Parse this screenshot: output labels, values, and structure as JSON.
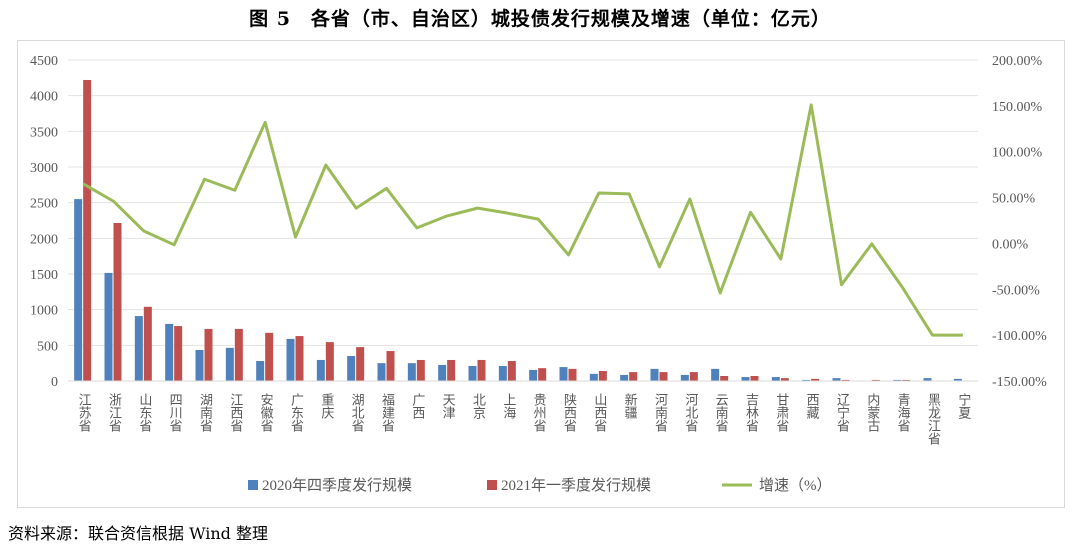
{
  "title": "图 5　各省（市、自治区）城投债发行规模及增速（单位：亿元）",
  "source": "资料来源：联合资信根据 Wind 整理",
  "chart_data": {
    "type": "bar+line",
    "categories": [
      "江苏省",
      "浙江省",
      "山东省",
      "四川省",
      "湖南省",
      "江西省",
      "安徽省",
      "广东省",
      "重庆",
      "湖北省",
      "福建省",
      "广西",
      "天津",
      "北京",
      "上海",
      "贵州省",
      "陕西省",
      "山西省",
      "新疆",
      "河南省",
      "河北省",
      "云南省",
      "吉林省",
      "甘肃省",
      "西藏",
      "辽宁省",
      "内蒙古",
      "青海省",
      "黑龙江省",
      "宁夏"
    ],
    "series": [
      {
        "name": "2020年四季度发行规模",
        "type": "bar",
        "axis": "left",
        "color": "#4f81bd",
        "values": [
          2550,
          1515,
          910,
          800,
          435,
          465,
          280,
          590,
          295,
          350,
          250,
          250,
          225,
          210,
          210,
          155,
          195,
          100,
          85,
          170,
          85,
          170,
          55,
          55,
          15,
          40,
          0,
          15,
          40,
          30
        ]
      },
      {
        "name": "2021年一季度发行规模",
        "type": "bar",
        "axis": "left",
        "color": "#c0504d",
        "values": [
          4220,
          2215,
          1040,
          770,
          730,
          730,
          675,
          630,
          545,
          475,
          420,
          295,
          295,
          295,
          280,
          180,
          170,
          140,
          125,
          125,
          125,
          70,
          70,
          40,
          30,
          15,
          15,
          15,
          0,
          0
        ]
      },
      {
        "name": "增速（%）",
        "type": "line",
        "axis": "right",
        "color": "#9bbb59",
        "values": [
          65,
          46,
          13.5,
          -1.5,
          70,
          58,
          132,
          7,
          85.5,
          38.5,
          60,
          17,
          30,
          38.5,
          33,
          26.5,
          -12.5,
          55,
          54,
          -25.5,
          48.5,
          -54,
          34,
          -17,
          151,
          -45,
          -0.5,
          -47.5,
          -100,
          -100
        ]
      }
    ],
    "left_axis": {
      "range": [
        0,
        4500
      ],
      "ticks": [
        "0",
        "500",
        "1000",
        "1500",
        "2000",
        "2500",
        "3000",
        "3500",
        "4000",
        "4500"
      ]
    },
    "right_axis": {
      "range": [
        -150,
        200
      ],
      "ticks": [
        "-150.00%",
        "-100.00%",
        "-50.00%",
        "0.00%",
        "50.00%",
        "100.00%",
        "150.00%",
        "200.00%"
      ]
    },
    "grid": true,
    "legend_position": "bottom"
  }
}
